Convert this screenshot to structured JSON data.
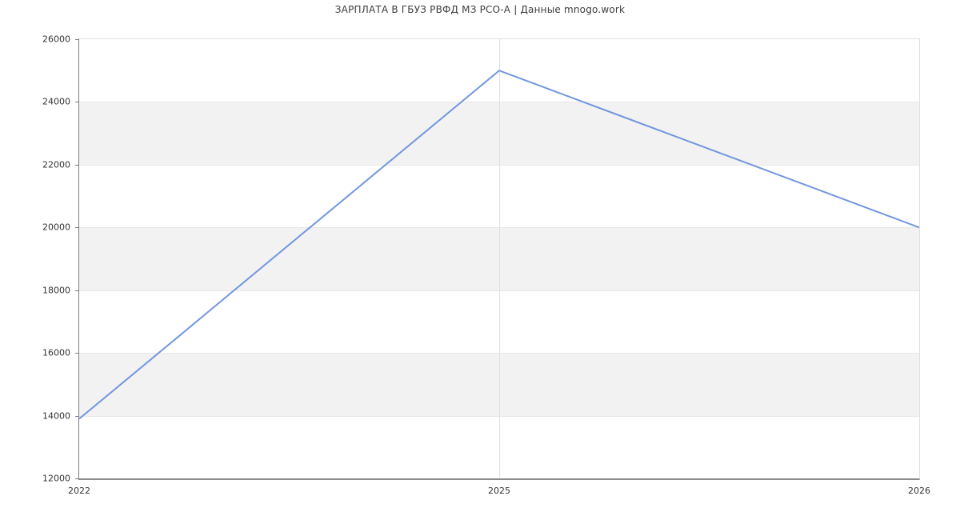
{
  "chart_data": {
    "type": "line",
    "title": "ЗАРПЛАТА В ГБУЗ РВФД МЗ РСО-А | Данные mnogo.work",
    "x": [
      "2022",
      "2025",
      "2026"
    ],
    "values": [
      13900,
      25000,
      20000
    ],
    "xlabel": "",
    "ylabel": "",
    "ylim": [
      12000,
      26000
    ],
    "yticks": [
      26000,
      24000,
      22000,
      20000,
      18000,
      16000,
      14000,
      12000
    ],
    "ytick_labels": [
      "26000",
      "24000",
      "22000",
      "20000",
      "18000",
      "16000",
      "14000",
      "12000"
    ],
    "grid": true,
    "legend": "none",
    "band_pattern": "alternating gray bands between odd tick intervals",
    "colors": {
      "line": "#7296df",
      "band": "#f2f2f2",
      "hgrid": "#e8e8e8",
      "vgrid": "#e0e0e0",
      "axis": "#7d7d7d",
      "border": "#e0e0e0",
      "tick_label": "#333333",
      "title": "#3d3d3d",
      "background": "#ffffff"
    }
  }
}
